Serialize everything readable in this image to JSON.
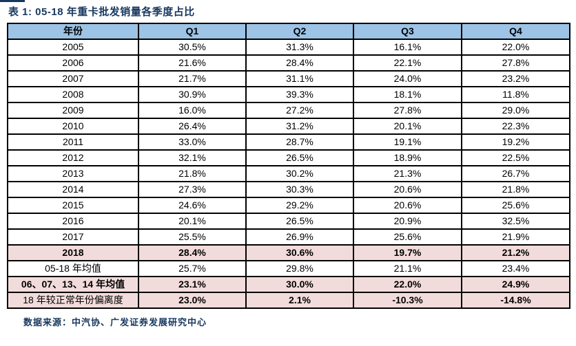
{
  "title": "表 1: 05-18 年重卡批发销量各季度占比",
  "footer": {
    "source_note": "数据来源：中汽协、广发证券发展研究中心"
  },
  "colors": {
    "header_bg": "#9DC3E6",
    "highlight_bg": "#F2DCDB",
    "title_text": "#17375E",
    "border": "#000000"
  },
  "table": {
    "columns": [
      "年份",
      "Q1",
      "Q2",
      "Q3",
      "Q4"
    ],
    "rows": [
      {
        "label": "2005",
        "values": [
          "30.5%",
          "31.3%",
          "16.1%",
          "22.0%"
        ],
        "highlight": false,
        "label_bold": false,
        "values_bold": false
      },
      {
        "label": "2006",
        "values": [
          "21.6%",
          "28.4%",
          "22.1%",
          "27.8%"
        ],
        "highlight": false,
        "label_bold": false,
        "values_bold": false
      },
      {
        "label": "2007",
        "values": [
          "21.7%",
          "31.1%",
          "24.0%",
          "23.2%"
        ],
        "highlight": false,
        "label_bold": false,
        "values_bold": false
      },
      {
        "label": "2008",
        "values": [
          "30.9%",
          "39.3%",
          "18.1%",
          "11.8%"
        ],
        "highlight": false,
        "label_bold": false,
        "values_bold": false
      },
      {
        "label": "2009",
        "values": [
          "16.0%",
          "27.2%",
          "27.8%",
          "29.0%"
        ],
        "highlight": false,
        "label_bold": false,
        "values_bold": false
      },
      {
        "label": "2010",
        "values": [
          "26.4%",
          "31.2%",
          "20.1%",
          "22.3%"
        ],
        "highlight": false,
        "label_bold": false,
        "values_bold": false
      },
      {
        "label": "2011",
        "values": [
          "33.0%",
          "28.7%",
          "19.1%",
          "19.2%"
        ],
        "highlight": false,
        "label_bold": false,
        "values_bold": false
      },
      {
        "label": "2012",
        "values": [
          "32.1%",
          "26.5%",
          "18.9%",
          "22.5%"
        ],
        "highlight": false,
        "label_bold": false,
        "values_bold": false
      },
      {
        "label": "2013",
        "values": [
          "21.8%",
          "30.2%",
          "21.3%",
          "26.7%"
        ],
        "highlight": false,
        "label_bold": false,
        "values_bold": false
      },
      {
        "label": "2014",
        "values": [
          "27.3%",
          "30.3%",
          "20.6%",
          "21.8%"
        ],
        "highlight": false,
        "label_bold": false,
        "values_bold": false
      },
      {
        "label": "2015",
        "values": [
          "24.6%",
          "29.2%",
          "20.6%",
          "25.6%"
        ],
        "highlight": false,
        "label_bold": false,
        "values_bold": false
      },
      {
        "label": "2016",
        "values": [
          "20.1%",
          "26.5%",
          "20.9%",
          "32.5%"
        ],
        "highlight": false,
        "label_bold": false,
        "values_bold": false
      },
      {
        "label": "2017",
        "values": [
          "25.5%",
          "26.9%",
          "25.6%",
          "21.9%"
        ],
        "highlight": false,
        "label_bold": false,
        "values_bold": false
      },
      {
        "label": "2018",
        "values": [
          "28.4%",
          "30.6%",
          "19.7%",
          "21.2%"
        ],
        "highlight": true,
        "label_bold": true,
        "values_bold": true
      },
      {
        "label": "05-18 年均值",
        "values": [
          "25.7%",
          "29.8%",
          "21.1%",
          "23.4%"
        ],
        "highlight": false,
        "label_bold": false,
        "values_bold": false
      },
      {
        "label": "06、07、13、14 年均值",
        "values": [
          "23.1%",
          "30.0%",
          "22.0%",
          "24.9%"
        ],
        "highlight": true,
        "label_bold": true,
        "values_bold": true
      },
      {
        "label": "18 年较正常年份偏离度",
        "values": [
          "23.0%",
          "2.1%",
          "-10.3%",
          "-14.8%"
        ],
        "highlight": true,
        "label_bold": false,
        "values_bold": true
      }
    ]
  }
}
